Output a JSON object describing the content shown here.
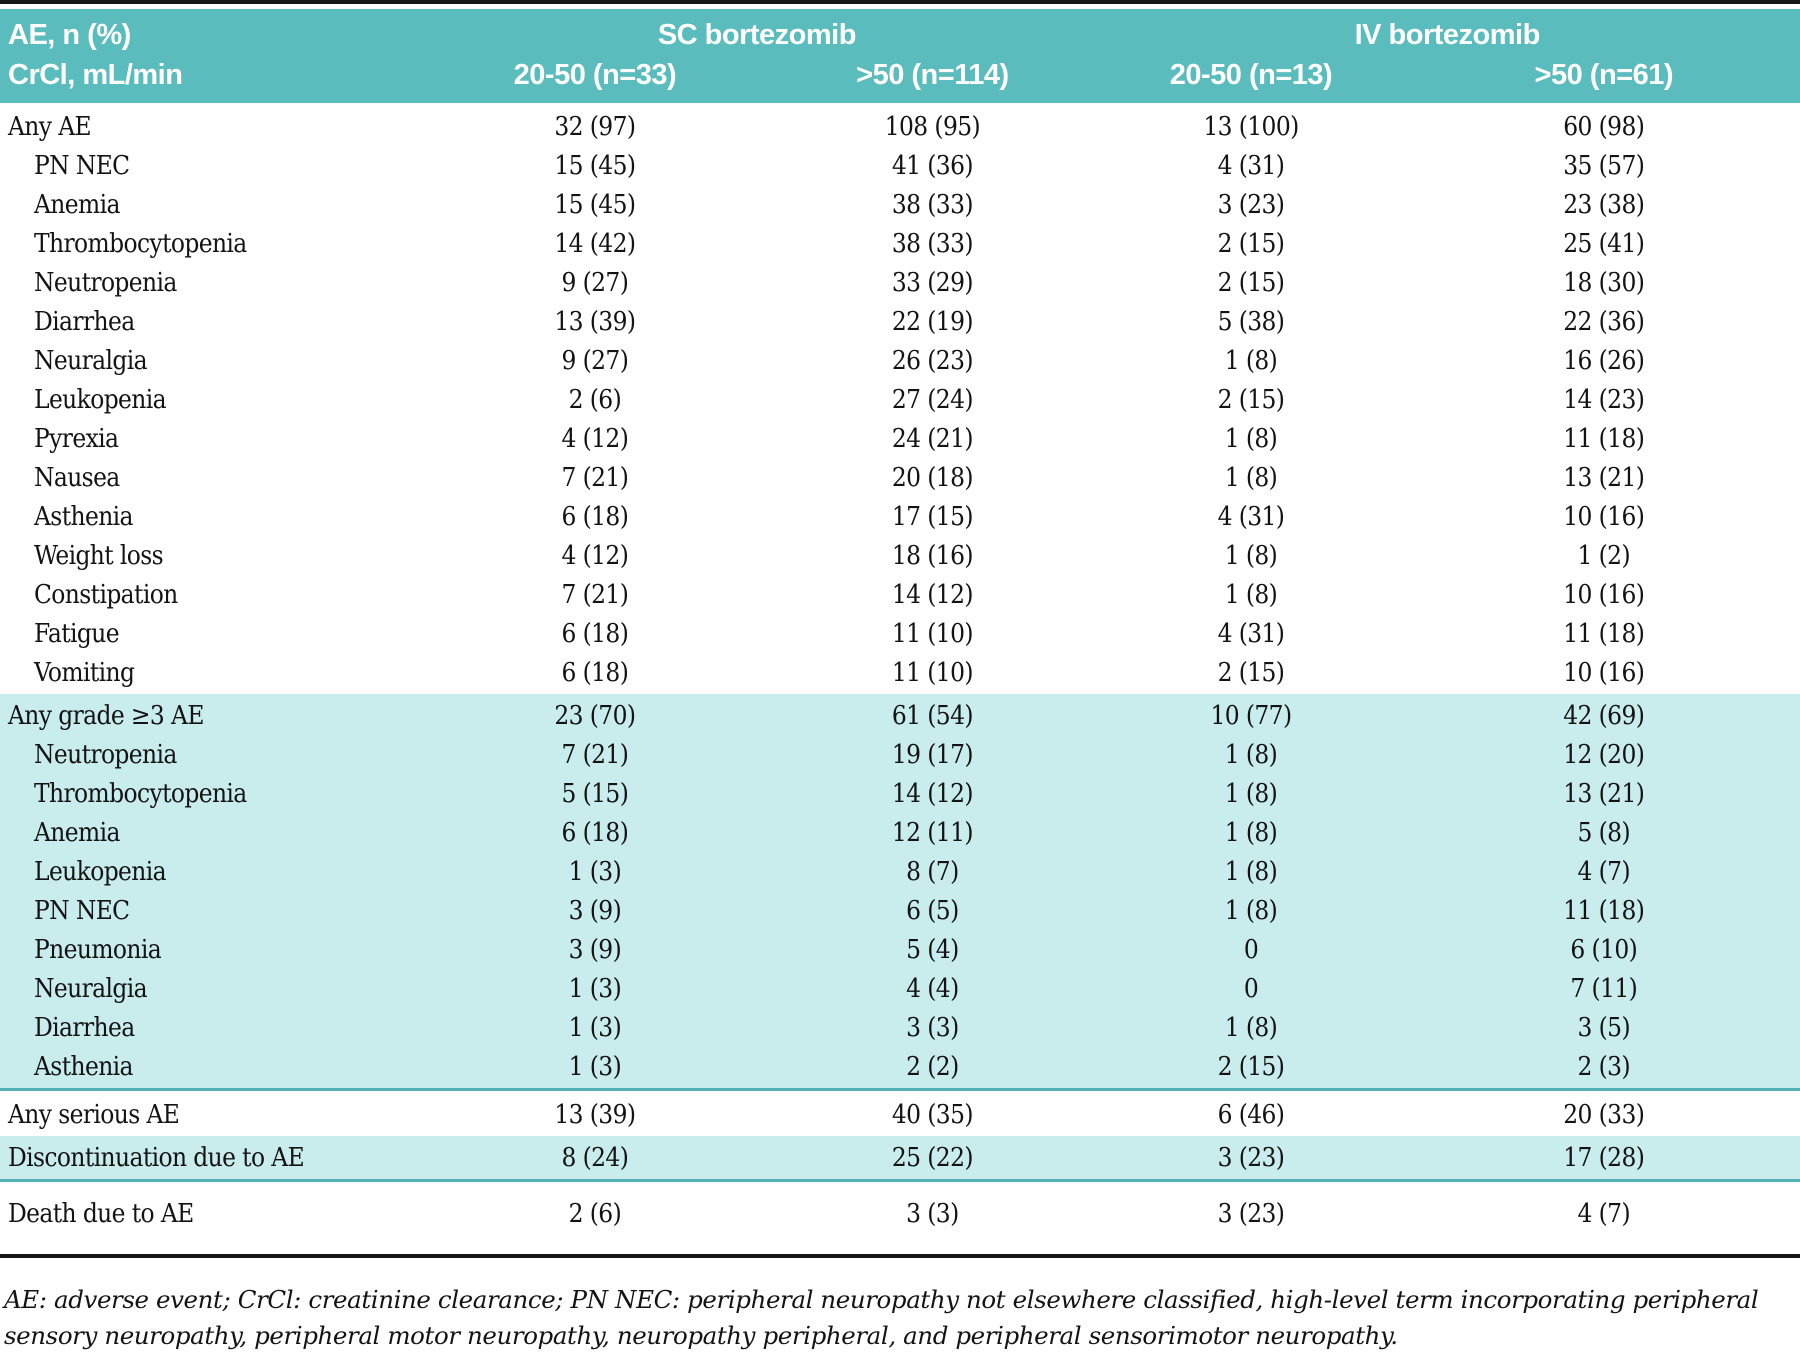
{
  "colors": {
    "header_bg": "#5bbcbe",
    "shade_bg": "#c9ecec",
    "divider": "#53b1b3",
    "rule": "#161616"
  },
  "header": {
    "row_head_line1": "AE, n (%)",
    "row_head_line2": "CrCl, mL/min",
    "groups": [
      {
        "label": "SC bortezomib"
      },
      {
        "label": "IV bortezomib"
      }
    ],
    "subcols": [
      "20-50 (n=33)",
      ">50 (n=114)",
      "20-50 (n=13)",
      ">50 (n=61)"
    ]
  },
  "sections": [
    {
      "shaded": false,
      "name": "any-ae",
      "rows": [
        {
          "label": "Any AE",
          "indent": false,
          "values": [
            "32 (97)",
            "108 (95)",
            "13 (100)",
            "60 (98)"
          ]
        },
        {
          "label": "PN NEC",
          "indent": true,
          "values": [
            "15 (45)",
            "41 (36)",
            "4 (31)",
            "35 (57)"
          ]
        },
        {
          "label": "Anemia",
          "indent": true,
          "values": [
            "15 (45)",
            "38 (33)",
            "3 (23)",
            "23 (38)"
          ]
        },
        {
          "label": "Thrombocytopenia",
          "indent": true,
          "values": [
            "14 (42)",
            "38 (33)",
            "2 (15)",
            "25 (41)"
          ]
        },
        {
          "label": "Neutropenia",
          "indent": true,
          "values": [
            "9 (27)",
            "33 (29)",
            "2 (15)",
            "18 (30)"
          ]
        },
        {
          "label": "Diarrhea",
          "indent": true,
          "values": [
            "13 (39)",
            "22 (19)",
            "5 (38)",
            "22 (36)"
          ]
        },
        {
          "label": "Neuralgia",
          "indent": true,
          "values": [
            "9 (27)",
            "26 (23)",
            "1 (8)",
            "16 (26)"
          ]
        },
        {
          "label": "Leukopenia",
          "indent": true,
          "values": [
            "2 (6)",
            "27 (24)",
            "2 (15)",
            "14 (23)"
          ]
        },
        {
          "label": "Pyrexia",
          "indent": true,
          "values": [
            "4 (12)",
            "24 (21)",
            "1 (8)",
            "11 (18)"
          ]
        },
        {
          "label": "Nausea",
          "indent": true,
          "values": [
            "7 (21)",
            "20 (18)",
            "1 (8)",
            "13 (21)"
          ]
        },
        {
          "label": "Asthenia",
          "indent": true,
          "values": [
            "6 (18)",
            "17 (15)",
            "4 (31)",
            "10 (16)"
          ]
        },
        {
          "label": "Weight loss",
          "indent": true,
          "values": [
            "4 (12)",
            "18 (16)",
            "1 (8)",
            "1 (2)"
          ]
        },
        {
          "label": "Constipation",
          "indent": true,
          "values": [
            "7 (21)",
            "14 (12)",
            "1 (8)",
            "10 (16)"
          ]
        },
        {
          "label": "Fatigue",
          "indent": true,
          "values": [
            "6 (18)",
            "11 (10)",
            "4 (31)",
            "11 (18)"
          ]
        },
        {
          "label": "Vomiting",
          "indent": true,
          "values": [
            "6 (18)",
            "11 (10)",
            "2 (15)",
            "10 (16)"
          ]
        }
      ]
    },
    {
      "shaded": true,
      "name": "grade3-ae",
      "rows": [
        {
          "label": "Any grade ≥3 AE",
          "indent": false,
          "values": [
            "23 (70)",
            "61 (54)",
            "10 (77)",
            "42 (69)"
          ]
        },
        {
          "label": "Neutropenia",
          "indent": true,
          "values": [
            "7 (21)",
            "19 (17)",
            "1 (8)",
            "12 (20)"
          ]
        },
        {
          "label": "Thrombocytopenia",
          "indent": true,
          "values": [
            "5 (15)",
            "14 (12)",
            "1 (8)",
            "13 (21)"
          ]
        },
        {
          "label": "Anemia",
          "indent": true,
          "values": [
            "6 (18)",
            "12 (11)",
            "1 (8)",
            "5 (8)"
          ]
        },
        {
          "label": "Leukopenia",
          "indent": true,
          "values": [
            "1 (3)",
            "8 (7)",
            "1 (8)",
            "4 (7)"
          ]
        },
        {
          "label": "PN NEC",
          "indent": true,
          "values": [
            "3 (9)",
            "6 (5)",
            "1 (8)",
            "11 (18)"
          ]
        },
        {
          "label": "Pneumonia",
          "indent": true,
          "values": [
            "3 (9)",
            "5 (4)",
            "0",
            "6 (10)"
          ]
        },
        {
          "label": "Neuralgia",
          "indent": true,
          "values": [
            "1 (3)",
            "4 (4)",
            "0",
            "7 (11)"
          ]
        },
        {
          "label": "Diarrhea",
          "indent": true,
          "values": [
            "1 (3)",
            "3 (3)",
            "1 (8)",
            "3 (5)"
          ]
        },
        {
          "label": "Asthenia",
          "indent": true,
          "values": [
            "1 (3)",
            "2 (2)",
            "2 (15)",
            "2 (3)"
          ]
        }
      ]
    },
    {
      "shaded": false,
      "name": "serious-ae",
      "rows": [
        {
          "label": "Any serious AE",
          "indent": false,
          "values": [
            "13 (39)",
            "40 (35)",
            "6 (46)",
            "20 (33)"
          ]
        }
      ]
    },
    {
      "shaded": true,
      "name": "discontinuation",
      "rows": [
        {
          "label": "Discontinuation due to AE",
          "indent": false,
          "values": [
            "8 (24)",
            "25 (22)",
            "3 (23)",
            "17 (28)"
          ]
        }
      ]
    },
    {
      "shaded": false,
      "name": "death",
      "rows": [
        {
          "label": "Death due to AE",
          "indent": false,
          "values": [
            "2 (6)",
            "3 (3)",
            "3 (23)",
            "4 (7)"
          ]
        }
      ]
    }
  ],
  "footnote": "AE: adverse event; CrCl: creatinine clearance; PN NEC: peripheral neuropathy not elsewhere classified, high-level term incorporating peripheral sensory neuropathy, peripheral motor neuropathy, neuropathy peripheral, and peripheral sensorimotor neuropathy."
}
